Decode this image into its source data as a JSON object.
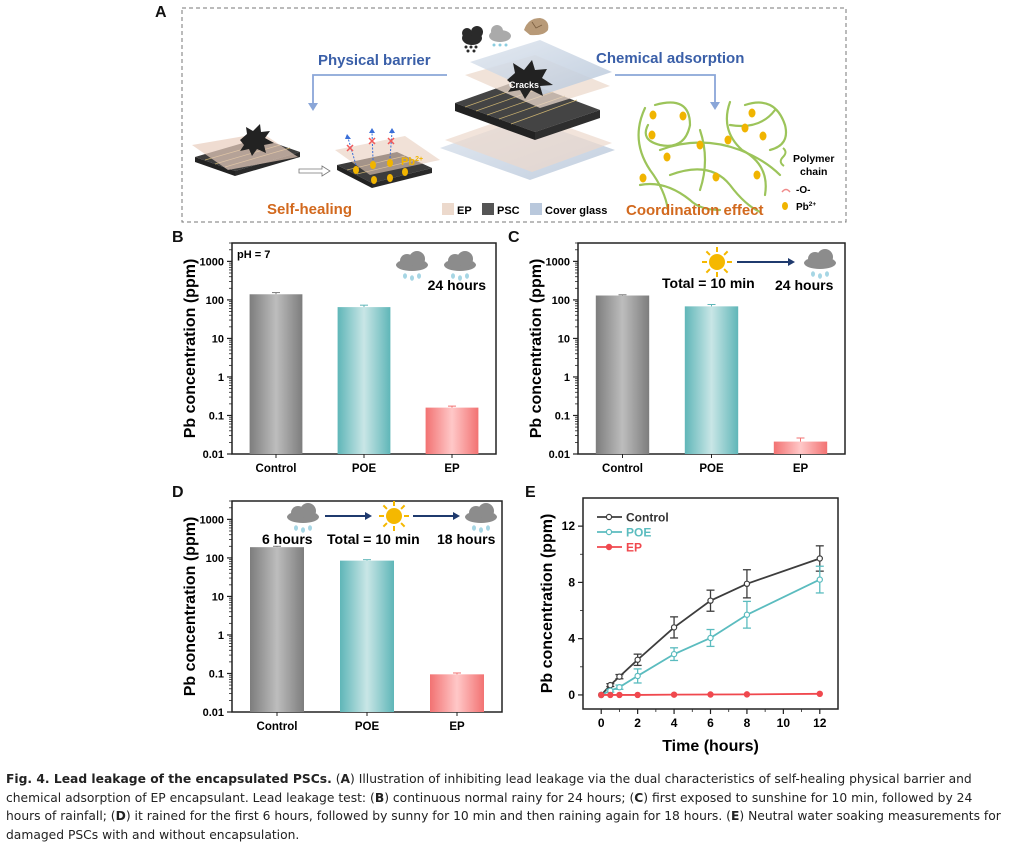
{
  "panel_letters": [
    "A",
    "B",
    "C",
    "D",
    "E"
  ],
  "schematic": {
    "physical_barrier": "Physical barrier",
    "chemical_adsorption": "Chemical adsorption",
    "self_healing": "Self-healing",
    "coordination_effect": "Coordination effect",
    "cracks": "Cracks",
    "pb_ion": "Pb",
    "pb_sup": "2+",
    "legend": [
      {
        "label": "EP",
        "color": "#ecd9cc"
      },
      {
        "label": "PSC",
        "color": "#555555"
      },
      {
        "label": "Cover glass",
        "color": "#b9c8dc"
      }
    ],
    "right_legend": {
      "polymer": "Polymer",
      "chain": "chain",
      "oxygen": "-O-",
      "pb": "Pb",
      "pb_sup": "2+"
    },
    "colors": {
      "title_blue": "#3a5fa8",
      "label_orange": "#d2691e",
      "arrow_blue": "#8aa6d8",
      "polymer_green": "#9cc45a",
      "pb_gold": "#f0b400"
    }
  },
  "chart_data": [
    {
      "id": "B",
      "type": "bar",
      "yscale": "log",
      "ylabel": "Pb concentration (ppm)",
      "xlabel": "",
      "categories": [
        "Control",
        "POE",
        "EP"
      ],
      "values": [
        140,
        65,
        0.16
      ],
      "errors": [
        15,
        8,
        0.015
      ],
      "ylim": [
        0.01,
        3000
      ],
      "yticks": [
        "0.01",
        "0.1",
        "1",
        "10",
        "100",
        "1000"
      ],
      "annotation": "pH = 7",
      "condition_labels": [
        "24 hours"
      ],
      "colors": [
        "#9a9a9a",
        "#7cc4c4",
        "#f48a8a"
      ]
    },
    {
      "id": "C",
      "type": "bar",
      "yscale": "log",
      "ylabel": "Pb concentration (ppm)",
      "xlabel": "",
      "categories": [
        "Control",
        "POE",
        "EP"
      ],
      "values": [
        130,
        68,
        0.021
      ],
      "errors": [
        6,
        8,
        0.005
      ],
      "ylim": [
        0.01,
        3000
      ],
      "yticks": [
        "0.01",
        "0.1",
        "1",
        "10",
        "100",
        "1000"
      ],
      "condition_labels": [
        "Total = 10 min",
        "24 hours"
      ],
      "colors": [
        "#9a9a9a",
        "#7cc4c4",
        "#f48a8a"
      ]
    },
    {
      "id": "D",
      "type": "bar",
      "yscale": "log",
      "ylabel": "Pb concentration (ppm)",
      "xlabel": "",
      "categories": [
        "Control",
        "POE",
        "EP"
      ],
      "values": [
        190,
        85,
        0.095
      ],
      "errors": [
        10,
        5,
        0.008
      ],
      "ylim": [
        0.01,
        3000
      ],
      "yticks": [
        "0.01",
        "0.1",
        "1",
        "10",
        "100",
        "1000"
      ],
      "condition_labels": [
        "6 hours",
        "Total = 10 min",
        "18 hours"
      ],
      "colors": [
        "#9a9a9a",
        "#7cc4c4",
        "#f48a8a"
      ]
    },
    {
      "id": "E",
      "type": "line",
      "xlabel": "Time (hours)",
      "ylabel": "Pb concentration (ppm)",
      "xlim": [
        -1,
        13
      ],
      "ylim": [
        -1,
        14
      ],
      "xticks": [
        0,
        2,
        4,
        6,
        8,
        10,
        12
      ],
      "yticks": [
        0,
        4,
        8,
        12
      ],
      "legend_position": "top-left",
      "series": [
        {
          "name": "Control",
          "color": "#3d3d3d",
          "x": [
            0,
            0.5,
            1,
            2,
            4,
            6,
            8,
            12
          ],
          "y": [
            0,
            0.7,
            1.3,
            2.5,
            4.8,
            6.7,
            7.9,
            9.7
          ],
          "err": [
            0,
            0.1,
            0.15,
            0.4,
            0.75,
            0.75,
            1.0,
            0.9
          ]
        },
        {
          "name": "POE",
          "color": "#5bbcbf",
          "x": [
            0,
            0.5,
            1,
            2,
            4,
            6,
            8,
            12
          ],
          "y": [
            0,
            0.3,
            0.55,
            1.35,
            2.9,
            4.05,
            5.7,
            8.2
          ],
          "err": [
            0,
            0.1,
            0.15,
            0.5,
            0.45,
            0.6,
            0.95,
            0.95
          ]
        },
        {
          "name": "EP",
          "color": "#f0484e",
          "x": [
            0,
            0.5,
            1,
            2,
            4,
            6,
            8,
            12
          ],
          "y": [
            0,
            0,
            0,
            0,
            0.02,
            0.03,
            0.04,
            0.08
          ],
          "err": [
            0,
            0,
            0,
            0,
            0,
            0,
            0,
            0
          ]
        }
      ]
    }
  ],
  "caption": {
    "title": "Fig. 4. Lead leakage of the encapsulated PSCs.",
    "parts": [
      {
        "label": "A",
        "text": " Illustration of inhibiting lead leakage via the dual characteristics of self-healing physical barrier and chemical adsorption of EP encapsulant. Lead leakage test: "
      },
      {
        "label": "B",
        "text": " continuous normal rainy for 24 hours; "
      },
      {
        "label": "C",
        "text": " first exposed to sunshine for 10 min, followed by 24 hours of rainfall; "
      },
      {
        "label": "D",
        "text": " it rained for the first 6 hours, followed by sunny for 10 min and then raining again for 18 hours. "
      },
      {
        "label": "E",
        "text": " Neutral water soaking measurements for damaged PSCs with and without encapsulation."
      }
    ]
  }
}
